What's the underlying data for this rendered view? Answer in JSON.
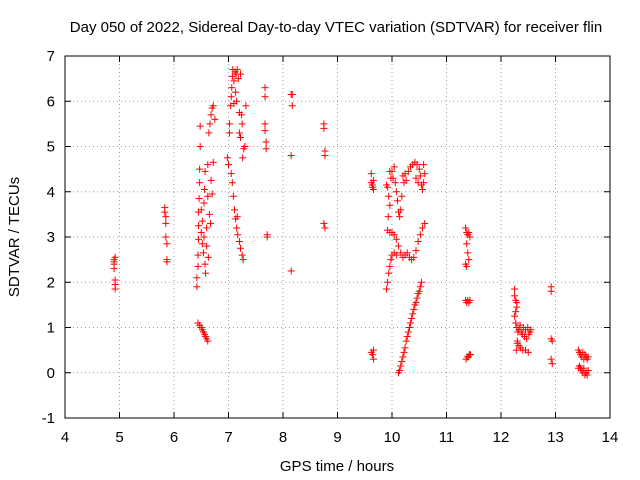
{
  "chart_data": {
    "type": "scatter",
    "title": "Day 050 of 2022, Sidereal Day-to-day VTEC variation (SDTVAR) for receiver flin",
    "xlabel": "GPS time / hours",
    "ylabel": "SDTVAR / TECUs",
    "xlim": [
      4,
      14
    ],
    "ylim": [
      -1,
      7
    ],
    "xticks": [
      "4",
      "5",
      "6",
      "7",
      "8",
      "9",
      "10",
      "11",
      "12",
      "13",
      "14"
    ],
    "yticks": [
      "-1",
      "0",
      "1",
      "2",
      "3",
      "4",
      "5",
      "6",
      "7"
    ],
    "grid": true,
    "marker": "+",
    "color": "#ff0000",
    "series": [
      {
        "name": "SDTVAR",
        "points": [
          [
            4.9,
            2.5
          ],
          [
            4.9,
            2.45
          ],
          [
            4.9,
            2.4
          ],
          [
            4.9,
            2.3
          ],
          [
            4.92,
            2.55
          ],
          [
            4.92,
            2.05
          ],
          [
            4.92,
            1.95
          ],
          [
            4.92,
            1.85
          ],
          [
            5.83,
            3.65
          ],
          [
            5.83,
            3.55
          ],
          [
            5.85,
            3.45
          ],
          [
            5.85,
            3.3
          ],
          [
            5.85,
            3.0
          ],
          [
            5.87,
            2.85
          ],
          [
            5.87,
            2.5
          ],
          [
            5.87,
            2.45
          ],
          [
            6.42,
            1.9
          ],
          [
            6.42,
            2.1
          ],
          [
            6.44,
            2.35
          ],
          [
            6.44,
            2.6
          ],
          [
            6.45,
            2.95
          ],
          [
            6.45,
            3.25
          ],
          [
            6.45,
            3.55
          ],
          [
            6.46,
            3.85
          ],
          [
            6.47,
            4.2
          ],
          [
            6.47,
            4.5
          ],
          [
            6.48,
            5.0
          ],
          [
            6.48,
            5.45
          ],
          [
            6.5,
            3.1
          ],
          [
            6.5,
            3.6
          ],
          [
            6.52,
            3.35
          ],
          [
            6.52,
            2.85
          ],
          [
            6.54,
            2.65
          ],
          [
            6.55,
            3.0
          ],
          [
            6.55,
            3.75
          ],
          [
            6.56,
            4.05
          ],
          [
            6.57,
            4.45
          ],
          [
            6.57,
            2.4
          ],
          [
            6.58,
            2.2
          ],
          [
            6.6,
            2.8
          ],
          [
            6.6,
            3.2
          ],
          [
            6.62,
            4.6
          ],
          [
            6.62,
            3.9
          ],
          [
            6.63,
            2.55
          ],
          [
            6.64,
            5.3
          ],
          [
            6.65,
            3.5
          ],
          [
            6.66,
            5.5
          ],
          [
            6.67,
            3.3
          ],
          [
            6.68,
            4.25
          ],
          [
            6.68,
            5.7
          ],
          [
            6.7,
            5.85
          ],
          [
            6.7,
            3.95
          ],
          [
            6.72,
            4.65
          ],
          [
            6.72,
            5.9
          ],
          [
            6.75,
            5.6
          ],
          [
            6.44,
            1.1
          ],
          [
            6.47,
            1.05
          ],
          [
            6.5,
            1.0
          ],
          [
            6.52,
            0.95
          ],
          [
            6.54,
            0.9
          ],
          [
            6.56,
            0.85
          ],
          [
            6.58,
            0.8
          ],
          [
            6.6,
            0.75
          ],
          [
            6.62,
            0.7
          ],
          [
            6.98,
            4.75
          ],
          [
            7.0,
            4.6
          ],
          [
            7.02,
            5.5
          ],
          [
            7.02,
            5.3
          ],
          [
            7.04,
            5.9
          ],
          [
            7.05,
            6.1
          ],
          [
            7.06,
            6.3
          ],
          [
            7.07,
            6.55
          ],
          [
            7.08,
            6.7
          ],
          [
            7.1,
            6.45
          ],
          [
            7.1,
            5.95
          ],
          [
            7.12,
            6.65
          ],
          [
            7.13,
            6.2
          ],
          [
            7.14,
            6.6
          ],
          [
            7.15,
            6.0
          ],
          [
            7.16,
            6.7
          ],
          [
            7.18,
            6.5
          ],
          [
            7.2,
            5.75
          ],
          [
            7.2,
            5.3
          ],
          [
            7.22,
            5.2
          ],
          [
            7.22,
            6.6
          ],
          [
            7.24,
            5.7
          ],
          [
            7.25,
            5.5
          ],
          [
            7.26,
            4.75
          ],
          [
            7.28,
            4.95
          ],
          [
            7.3,
            5.0
          ],
          [
            7.32,
            5.9
          ],
          [
            7.05,
            4.4
          ],
          [
            7.07,
            4.2
          ],
          [
            7.09,
            3.9
          ],
          [
            7.11,
            3.6
          ],
          [
            7.13,
            3.4
          ],
          [
            7.15,
            3.2
          ],
          [
            7.17,
            3.05
          ],
          [
            7.2,
            2.9
          ],
          [
            7.22,
            2.75
          ],
          [
            7.25,
            2.6
          ],
          [
            7.27,
            2.5
          ],
          [
            7.16,
            3.45
          ],
          [
            7.67,
            6.3
          ],
          [
            7.67,
            6.1
          ],
          [
            7.67,
            5.5
          ],
          [
            7.67,
            5.35
          ],
          [
            7.69,
            5.1
          ],
          [
            7.69,
            4.95
          ],
          [
            7.71,
            3.05
          ],
          [
            7.71,
            3.0
          ],
          [
            8.15,
            6.15
          ],
          [
            8.17,
            6.15
          ],
          [
            8.17,
            5.9
          ],
          [
            8.15,
            4.8
          ],
          [
            8.15,
            2.25
          ],
          [
            8.75,
            5.5
          ],
          [
            8.75,
            5.4
          ],
          [
            8.77,
            4.9
          ],
          [
            8.77,
            4.8
          ],
          [
            8.75,
            3.3
          ],
          [
            8.77,
            3.2
          ],
          [
            9.62,
            4.4
          ],
          [
            9.62,
            4.2
          ],
          [
            9.64,
            4.15
          ],
          [
            9.64,
            4.1
          ],
          [
            9.66,
            4.25
          ],
          [
            9.66,
            4.05
          ],
          [
            9.62,
            0.45
          ],
          [
            9.64,
            0.4
          ],
          [
            9.66,
            0.3
          ],
          [
            9.66,
            0.5
          ],
          [
            9.9,
            4.15
          ],
          [
            9.92,
            4.1
          ],
          [
            9.94,
            3.9
          ],
          [
            9.96,
            3.7
          ],
          [
            9.93,
            3.45
          ],
          [
            9.96,
            4.45
          ],
          [
            9.98,
            4.3
          ],
          [
            10.0,
            4.45
          ],
          [
            10.02,
            4.3
          ],
          [
            10.04,
            4.55
          ],
          [
            10.06,
            4.2
          ],
          [
            10.08,
            4.0
          ],
          [
            10.1,
            3.8
          ],
          [
            10.12,
            3.55
          ],
          [
            10.14,
            3.45
          ],
          [
            10.16,
            3.6
          ],
          [
            10.18,
            3.9
          ],
          [
            10.2,
            4.35
          ],
          [
            10.22,
            4.2
          ],
          [
            10.24,
            4.4
          ],
          [
            10.26,
            4.25
          ],
          [
            10.3,
            4.45
          ],
          [
            10.34,
            4.55
          ],
          [
            10.38,
            4.6
          ],
          [
            10.42,
            4.65
          ],
          [
            10.46,
            4.6
          ],
          [
            10.5,
            4.5
          ],
          [
            10.52,
            4.35
          ],
          [
            10.54,
            4.15
          ],
          [
            10.56,
            4.05
          ],
          [
            10.58,
            4.2
          ],
          [
            10.6,
            4.4
          ],
          [
            10.58,
            4.6
          ],
          [
            10.44,
            4.3
          ],
          [
            10.48,
            4.2
          ],
          [
            9.92,
            3.15
          ],
          [
            9.96,
            3.1
          ],
          [
            10.0,
            3.1
          ],
          [
            10.04,
            3.05
          ],
          [
            10.08,
            2.95
          ],
          [
            10.12,
            2.8
          ],
          [
            10.16,
            2.65
          ],
          [
            10.2,
            2.55
          ],
          [
            10.24,
            2.6
          ],
          [
            10.28,
            2.65
          ],
          [
            10.32,
            2.55
          ],
          [
            10.36,
            2.5
          ],
          [
            10.4,
            2.55
          ],
          [
            10.44,
            2.7
          ],
          [
            10.48,
            2.9
          ],
          [
            10.52,
            3.05
          ],
          [
            10.56,
            3.2
          ],
          [
            10.6,
            3.3
          ],
          [
            9.9,
            1.85
          ],
          [
            9.92,
            2.0
          ],
          [
            9.94,
            2.2
          ],
          [
            9.96,
            2.35
          ],
          [
            9.98,
            2.5
          ],
          [
            10.0,
            2.6
          ],
          [
            10.04,
            2.65
          ],
          [
            10.08,
            2.6
          ],
          [
            10.12,
            0.0
          ],
          [
            10.14,
            0.05
          ],
          [
            10.16,
            0.15
          ],
          [
            10.18,
            0.25
          ],
          [
            10.2,
            0.35
          ],
          [
            10.22,
            0.45
          ],
          [
            10.24,
            0.55
          ],
          [
            10.26,
            0.7
          ],
          [
            10.28,
            0.8
          ],
          [
            10.3,
            0.9
          ],
          [
            10.32,
            1.0
          ],
          [
            10.34,
            1.1
          ],
          [
            10.36,
            1.2
          ],
          [
            10.38,
            1.3
          ],
          [
            10.4,
            1.4
          ],
          [
            10.42,
            1.5
          ],
          [
            10.44,
            1.55
          ],
          [
            10.46,
            1.65
          ],
          [
            10.48,
            1.75
          ],
          [
            10.5,
            1.8
          ],
          [
            10.52,
            1.9
          ],
          [
            10.54,
            2.0
          ],
          [
            11.35,
            3.2
          ],
          [
            11.37,
            3.1
          ],
          [
            11.39,
            3.05
          ],
          [
            11.41,
            3.1
          ],
          [
            11.43,
            3.0
          ],
          [
            11.37,
            2.85
          ],
          [
            11.39,
            2.65
          ],
          [
            11.41,
            2.5
          ],
          [
            11.35,
            2.4
          ],
          [
            11.37,
            2.35
          ],
          [
            11.35,
            1.6
          ],
          [
            11.37,
            1.55
          ],
          [
            11.39,
            1.6
          ],
          [
            11.41,
            1.55
          ],
          [
            11.43,
            1.6
          ],
          [
            11.36,
            0.3
          ],
          [
            11.38,
            0.35
          ],
          [
            11.4,
            0.35
          ],
          [
            11.42,
            0.4
          ],
          [
            11.44,
            0.4
          ],
          [
            12.25,
            1.85
          ],
          [
            12.25,
            1.7
          ],
          [
            12.27,
            1.6
          ],
          [
            12.29,
            1.55
          ],
          [
            12.29,
            1.45
          ],
          [
            12.27,
            1.35
          ],
          [
            12.25,
            1.25
          ],
          [
            12.27,
            1.1
          ],
          [
            12.29,
            1.0
          ],
          [
            12.31,
            0.9
          ],
          [
            12.33,
            0.95
          ],
          [
            12.35,
            1.05
          ],
          [
            12.37,
            0.9
          ],
          [
            12.39,
            0.85
          ],
          [
            12.41,
            1.0
          ],
          [
            12.43,
            0.8
          ],
          [
            12.45,
            0.95
          ],
          [
            12.47,
            0.75
          ],
          [
            12.49,
            1.0
          ],
          [
            12.51,
            0.85
          ],
          [
            12.53,
            0.9
          ],
          [
            12.55,
            0.95
          ],
          [
            12.3,
            0.65
          ],
          [
            12.33,
            0.6
          ],
          [
            12.36,
            0.55
          ],
          [
            12.4,
            0.5
          ],
          [
            12.45,
            0.5
          ],
          [
            12.5,
            0.45
          ],
          [
            12.28,
            0.5
          ],
          [
            12.3,
            0.7
          ],
          [
            12.92,
            1.9
          ],
          [
            12.92,
            1.8
          ],
          [
            12.92,
            0.75
          ],
          [
            12.94,
            0.7
          ],
          [
            12.92,
            0.3
          ],
          [
            12.94,
            0.2
          ],
          [
            13.42,
            0.5
          ],
          [
            13.44,
            0.45
          ],
          [
            13.46,
            0.4
          ],
          [
            13.48,
            0.35
          ],
          [
            13.5,
            0.45
          ],
          [
            13.52,
            0.3
          ],
          [
            13.54,
            0.4
          ],
          [
            13.56,
            0.35
          ],
          [
            13.58,
            0.3
          ],
          [
            13.6,
            0.35
          ],
          [
            13.44,
            0.15
          ],
          [
            13.46,
            0.1
          ],
          [
            13.48,
            0.05
          ],
          [
            13.5,
            0.0
          ],
          [
            13.52,
            0.1
          ],
          [
            13.54,
            -0.05
          ],
          [
            13.56,
            0.0
          ],
          [
            13.58,
            -0.05
          ],
          [
            13.6,
            0.05
          ],
          [
            13.42,
            0.1
          ]
        ]
      }
    ]
  }
}
